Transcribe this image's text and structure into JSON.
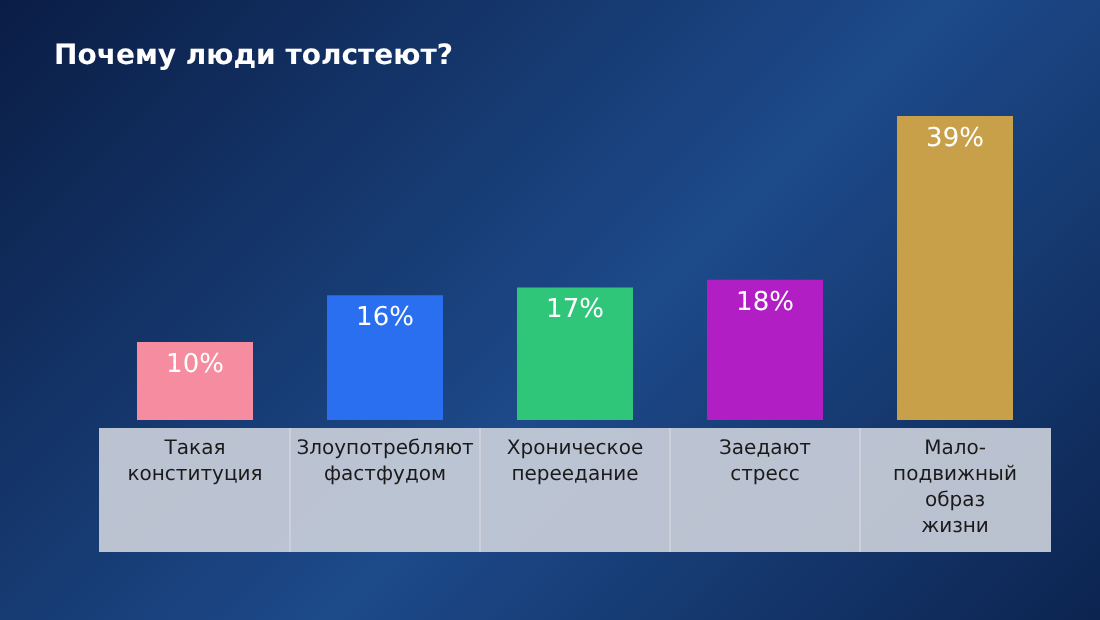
{
  "chart_data": {
    "type": "bar",
    "title": "Почему люди толстеют?",
    "categories": [
      "Такая\nконституция",
      "Злоупотребляют\nфастфудом",
      "Хроническое\nпереедание",
      "Заедают\nстресс",
      "Мало-\nподвижный\nобраз\nжизни"
    ],
    "values": [
      10,
      16,
      17,
      18,
      39
    ],
    "value_labels": [
      "10%",
      "16%",
      "17%",
      "18%",
      "39%"
    ],
    "colors": [
      "#f58ca0",
      "#2a6ff0",
      "#2fc67a",
      "#b11fc4",
      "#c9a04a"
    ]
  }
}
